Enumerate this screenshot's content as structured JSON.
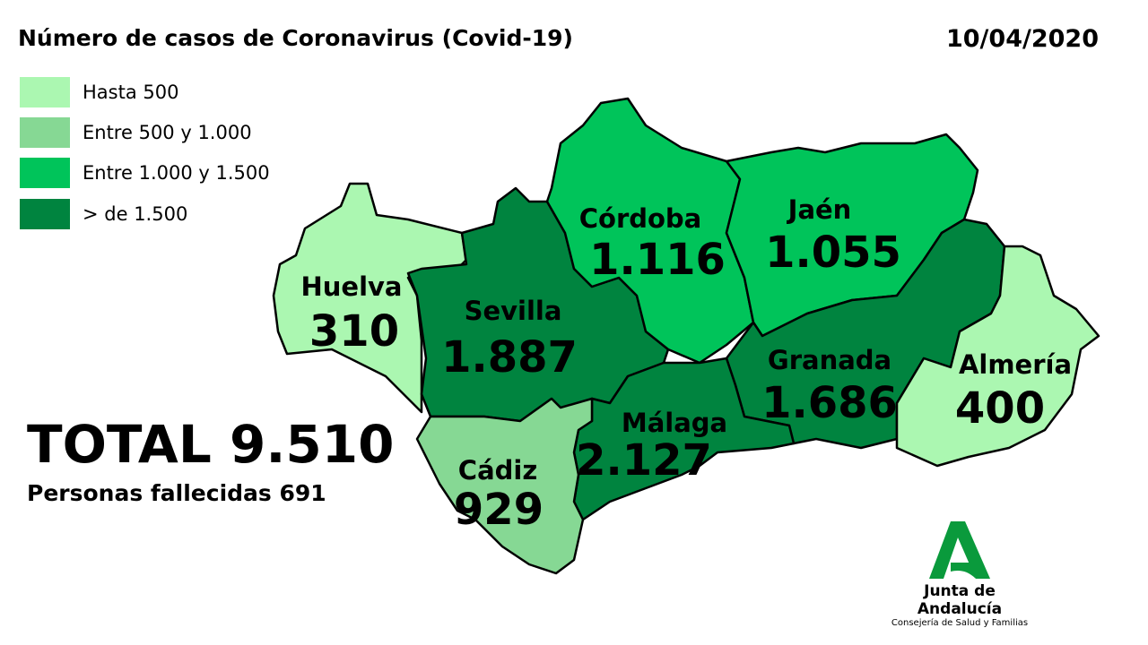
{
  "title": "Número de casos de Coronavirus (Covid-19)",
  "date": "10/04/2020",
  "legend": [
    {
      "label": "Hasta 500",
      "color": "#abf7b1"
    },
    {
      "label": "Entre 500 y 1.000",
      "color": "#86d894"
    },
    {
      "label": "Entre 1.000 y 1.500",
      "color": "#00c45a"
    },
    {
      "label": "> de 1.500",
      "color": "#00843f"
    }
  ],
  "total": "TOTAL 9.510",
  "deaths": "Personas fallecidas 691",
  "provinces": [
    {
      "name": "Huelva",
      "value": "310",
      "color": "#abf7b1"
    },
    {
      "name": "Sevilla",
      "value": "1.887",
      "color": "#00843f"
    },
    {
      "name": "Córdoba",
      "value": "1.116",
      "color": "#00c45a"
    },
    {
      "name": "Jaén",
      "value": "1.055",
      "color": "#00c45a"
    },
    {
      "name": "Granada",
      "value": "1.686",
      "color": "#00843f"
    },
    {
      "name": "Almería",
      "value": "400",
      "color": "#abf7b1"
    },
    {
      "name": "Málaga",
      "value": "2.127",
      "color": "#00843f"
    },
    {
      "name": "Cádiz",
      "value": "929",
      "color": "#86d894"
    }
  ],
  "logo": {
    "name": "Junta de Andalucía",
    "subtitle": "Consejería de Salud y Familias",
    "color": "#0a9a3c"
  }
}
